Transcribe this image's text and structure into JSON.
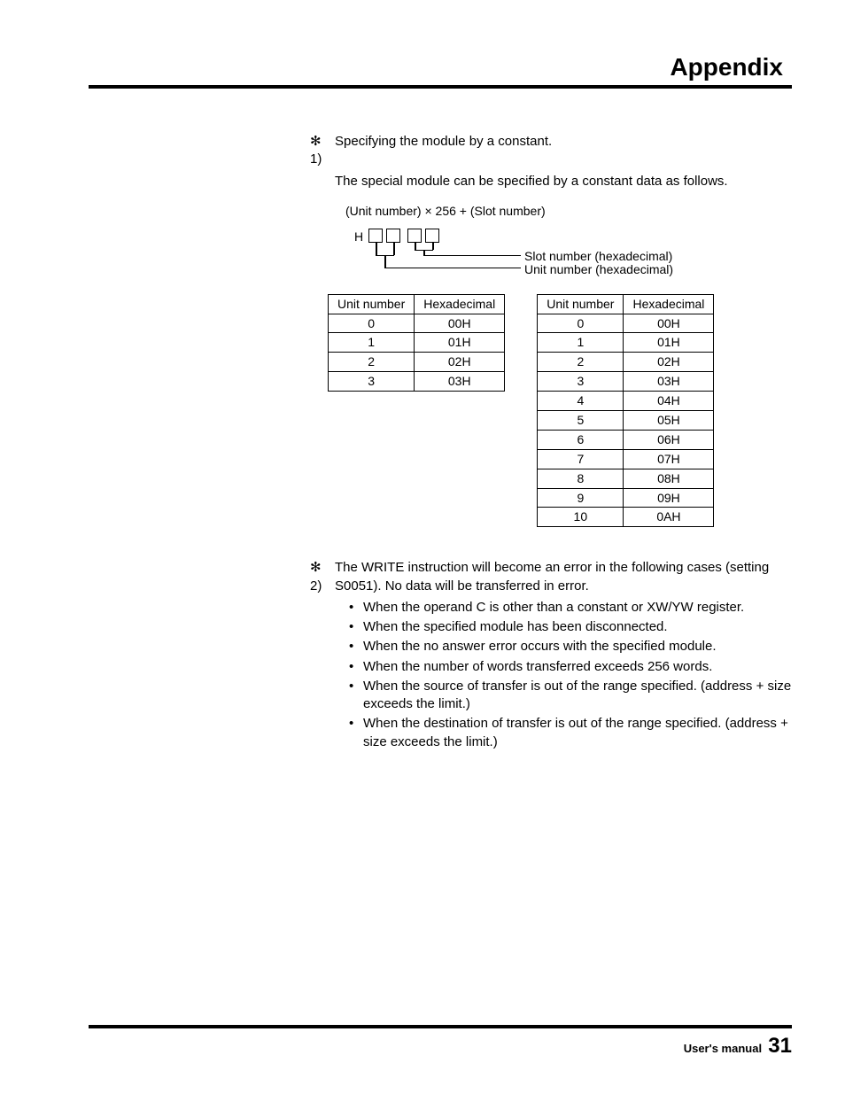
{
  "header": {
    "title": "Appendix"
  },
  "section1": {
    "marker": "✻ 1)",
    "line1": "Specifying the module by a constant.",
    "line2": "The special module can be specified by a constant data as follows.",
    "formula": "(Unit number) × 256 + (Slot number)",
    "diagram": {
      "h": "H",
      "label_slot": "Slot number (hexadecimal)",
      "label_unit": "Unit number (hexadecimal)"
    }
  },
  "table_left": {
    "headers": [
      "Unit number",
      "Hexadecimal"
    ],
    "rows": [
      [
        "0",
        "00H"
      ],
      [
        "1",
        "01H"
      ],
      [
        "2",
        "02H"
      ],
      [
        "3",
        "03H"
      ]
    ]
  },
  "table_right": {
    "headers": [
      "Unit number",
      "Hexadecimal"
    ],
    "rows": [
      [
        "0",
        "00H"
      ],
      [
        "1",
        "01H"
      ],
      [
        "2",
        "02H"
      ],
      [
        "3",
        "03H"
      ],
      [
        "4",
        "04H"
      ],
      [
        "5",
        "05H"
      ],
      [
        "6",
        "06H"
      ],
      [
        "7",
        "07H"
      ],
      [
        "8",
        "08H"
      ],
      [
        "9",
        "09H"
      ],
      [
        "10",
        "0AH"
      ]
    ]
  },
  "section2": {
    "marker": "✻ 2)",
    "line1": "The WRITE instruction will become an error in the following cases (setting S0051). No data will be transferred in error.",
    "bullets": [
      "When the operand C is other than a constant or XW/YW register.",
      "When the specified module has been disconnected.",
      "When the no answer error occurs with the specified module.",
      "When the number of words transferred exceeds 256 words.",
      "When the source of transfer is out of the range specified. (address + size exceeds the limit.)",
      "When the destination of transfer is out of the range specified. (address + size exceeds the limit.)"
    ]
  },
  "footer": {
    "label": "User's manual",
    "page": "31"
  }
}
